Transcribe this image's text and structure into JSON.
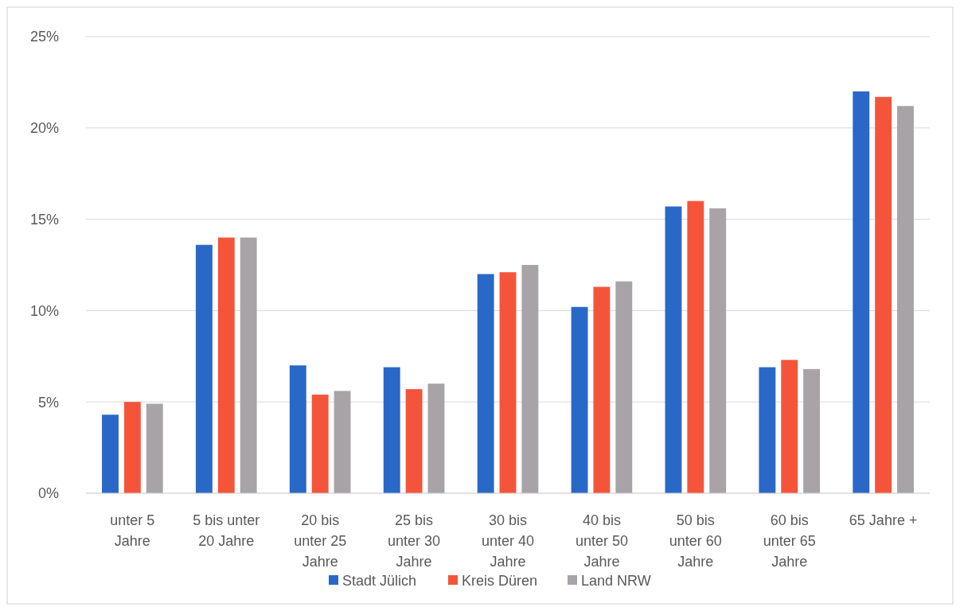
{
  "chart_data": {
    "type": "bar",
    "categories": [
      "unter 5 Jahre",
      "5 bis unter 20 Jahre",
      "20 bis unter 25 Jahre",
      "25 bis unter 30 Jahre",
      "30 bis unter 40 Jahre",
      "40 bis unter 50 Jahre",
      "50 bis unter 60 Jahre",
      "60 bis unter 65 Jahre",
      "65 Jahre +"
    ],
    "series": [
      {
        "name": "Stadt Jülich",
        "color": "#2a68c8",
        "values": [
          4.3,
          13.6,
          7.0,
          6.9,
          12.0,
          10.2,
          15.7,
          6.9,
          22.0
        ]
      },
      {
        "name": "Kreis Düren",
        "color": "#f4553a",
        "values": [
          5.0,
          14.0,
          5.4,
          5.7,
          12.1,
          11.3,
          16.0,
          7.3,
          21.7
        ]
      },
      {
        "name": "Land NRW",
        "color": "#a8a3a7",
        "values": [
          4.9,
          14.0,
          5.6,
          6.0,
          12.5,
          11.6,
          15.6,
          6.8,
          21.2
        ]
      }
    ],
    "ylim": [
      0,
      25
    ],
    "yticks": [
      {
        "value": 0,
        "label": "0%"
      },
      {
        "value": 5,
        "label": "5%"
      },
      {
        "value": 10,
        "label": "10%"
      },
      {
        "value": 15,
        "label": "15%"
      },
      {
        "value": 20,
        "label": "20%"
      },
      {
        "value": 25,
        "label": "25%"
      }
    ],
    "grid": "y",
    "legend": "bottom"
  }
}
